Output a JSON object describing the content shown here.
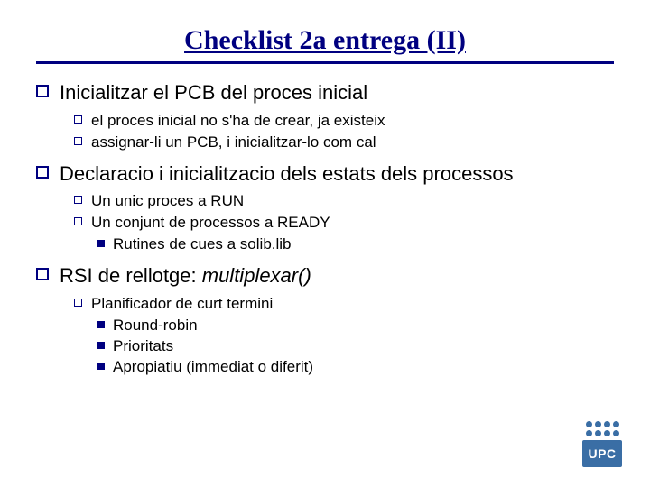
{
  "title": "Checklist 2a entrega (II)",
  "colors": {
    "accent": "#000080",
    "logo": "#3a6ea5",
    "text": "#000000",
    "background": "#ffffff"
  },
  "typography": {
    "title_family": "Times New Roman",
    "title_size_pt": 30,
    "body_family": "Arial",
    "lvl1_size_pt": 22,
    "lvl2_size_pt": 17,
    "lvl3_size_pt": 17
  },
  "items": {
    "a": {
      "text": "Inicialitzar el PCB del proces inicial",
      "sub": {
        "a": {
          "text": "el proces inicial no s'ha de crear, ja existeix"
        },
        "b": {
          "text": "assignar-li un PCB, i inicialitzar-lo com cal"
        }
      }
    },
    "b": {
      "text": "Declaracio i inicialitzacio dels estats dels processos",
      "sub": {
        "a": {
          "text": "Un unic proces a RUN"
        },
        "b": {
          "text": "Un conjunt de processos a READY",
          "sub": {
            "a": {
              "text": "Rutines de cues a solib.lib"
            }
          }
        }
      }
    },
    "c": {
      "text_prefix": "RSI de rellotge: ",
      "text_italic": "multiplexar()",
      "sub": {
        "a": {
          "text": "Planificador de curt termini",
          "sub": {
            "a": {
              "text": "Round-robin"
            },
            "b": {
              "text": "Prioritats"
            },
            "c": {
              "text": "Apropiatiu (immediat o diferit)"
            }
          }
        }
      }
    }
  },
  "logo": {
    "text": "UPC",
    "dot_rows": 2,
    "dot_cols": 4
  }
}
